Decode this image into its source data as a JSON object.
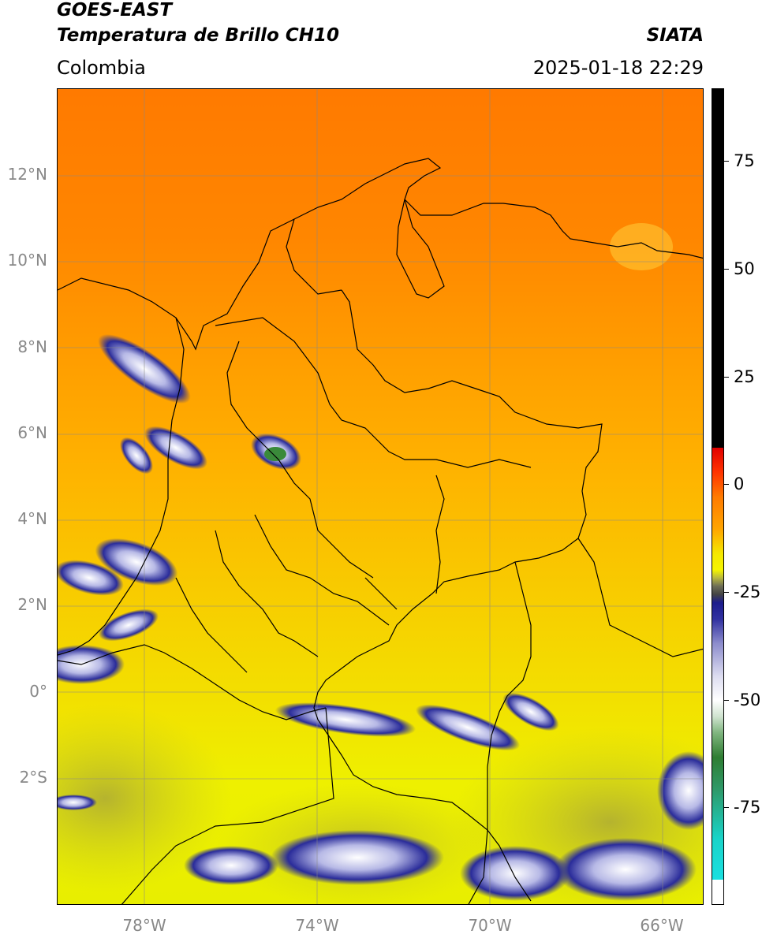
{
  "header": {
    "satellite": "GOES-EAST",
    "product": "Temperatura de Brillo CH10",
    "brand": "SIATA",
    "region": "Colombia",
    "timestamp": "2025-01-18 22:29"
  },
  "map": {
    "lat_labels": [
      "12°N",
      "10°N",
      "8°N",
      "6°N",
      "4°N",
      "2°N",
      "0°",
      "2°S"
    ],
    "lon_labels": [
      "78°W",
      "74°W",
      "70°W",
      "66°W"
    ]
  },
  "colorbar": {
    "ticks": [
      "75",
      "50",
      "25",
      "0",
      "-25",
      "-50",
      "-75"
    ],
    "colors": [
      "#000000",
      "#e10000",
      "#ff9900",
      "#f5f500",
      "#1c1c8c",
      "#ffffff",
      "#2e7d32",
      "#19d4c9"
    ]
  }
}
